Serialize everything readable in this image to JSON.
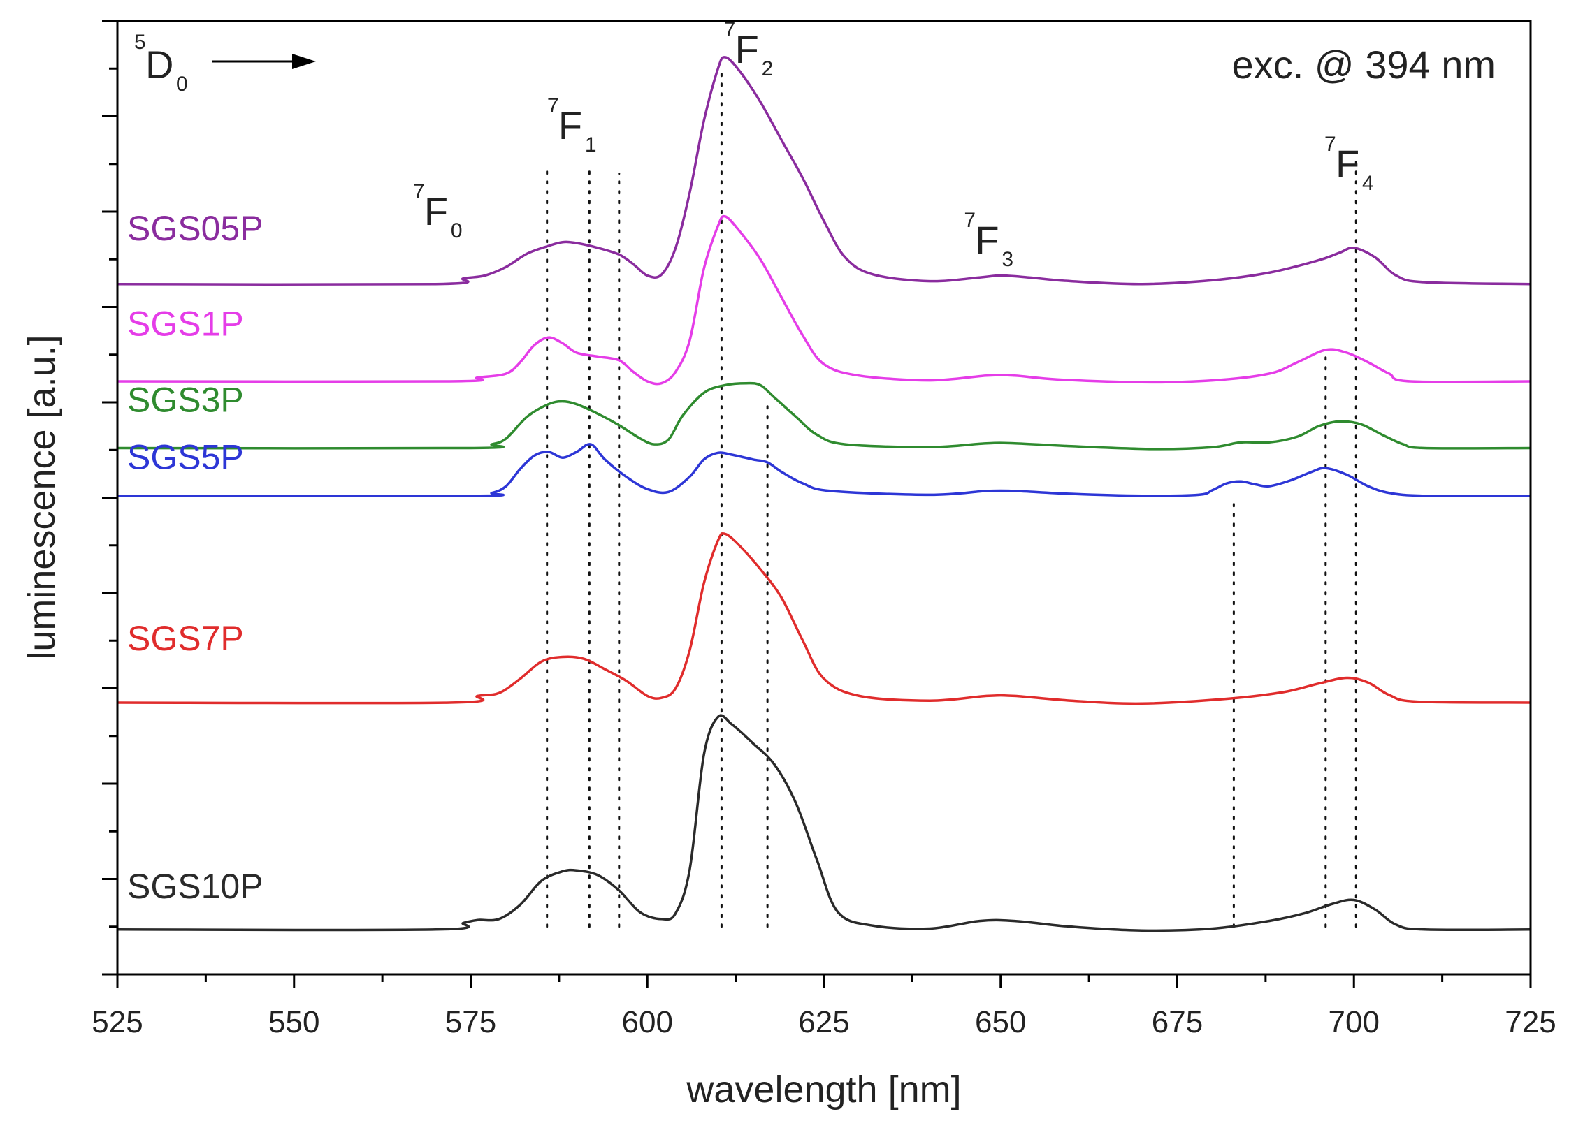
{
  "chart_data": {
    "type": "line",
    "title": "",
    "xlabel": "wavelength [nm]",
    "ylabel": "luminescence [a.u.]",
    "xlim": [
      525,
      725
    ],
    "ylim": [
      0,
      1
    ],
    "xticks": [
      525,
      550,
      575,
      600,
      625,
      650,
      675,
      700,
      725
    ],
    "xtick_labels": [
      "525",
      "550",
      "575",
      "600",
      "625",
      "650",
      "675",
      "700",
      "725"
    ],
    "yticks_count": 11,
    "y_tick_labels_shown": false,
    "excitation_label": "exc. @ 394 nm",
    "transition_label": {
      "upper": "D",
      "upper_sup": "5",
      "upper_sub": "0"
    },
    "level_labels": [
      {
        "base": "F",
        "sup": "7",
        "sub": "0",
        "x": 569
      },
      {
        "base": "F",
        "sup": "7",
        "sub": "1",
        "x": 588
      },
      {
        "base": "F",
        "sup": "7",
        "sub": "2",
        "x": 613
      },
      {
        "base": "F",
        "sup": "7",
        "sub": "3",
        "x": 647
      },
      {
        "base": "F",
        "sup": "7",
        "sub": "4",
        "x": 698
      }
    ],
    "reference_lines": [
      {
        "x": 585.8,
        "y_range": [
          0.05,
          0.85
        ]
      },
      {
        "x": 591.8,
        "y_range": [
          0.05,
          0.85
        ]
      },
      {
        "x": 596.0,
        "y_range": [
          0.05,
          0.84
        ]
      },
      {
        "x": 610.5,
        "y_range": [
          0.05,
          0.95
        ]
      },
      {
        "x": 617.0,
        "y_range": [
          0.05,
          0.6
        ]
      },
      {
        "x": 683.0,
        "y_range": [
          0.05,
          0.5
        ]
      },
      {
        "x": 696.0,
        "y_range": [
          0.05,
          0.65
        ]
      },
      {
        "x": 700.3,
        "y_range": [
          0.05,
          0.86
        ]
      }
    ],
    "series": [
      {
        "name": "SGS05P",
        "color": "#8a2c9e",
        "label_y": 0.77,
        "points": [
          [
            525,
            0.724
          ],
          [
            570,
            0.724
          ],
          [
            574,
            0.73
          ],
          [
            577,
            0.733
          ],
          [
            580,
            0.742
          ],
          [
            583,
            0.756
          ],
          [
            586,
            0.764
          ],
          [
            588,
            0.768
          ],
          [
            590,
            0.767
          ],
          [
            593,
            0.762
          ],
          [
            596,
            0.755
          ],
          [
            598,
            0.745
          ],
          [
            600,
            0.733
          ],
          [
            602,
            0.734
          ],
          [
            604,
            0.762
          ],
          [
            606,
            0.82
          ],
          [
            608,
            0.895
          ],
          [
            610,
            0.95
          ],
          [
            611,
            0.962
          ],
          [
            613,
            0.948
          ],
          [
            616,
            0.915
          ],
          [
            619,
            0.875
          ],
          [
            622,
            0.835
          ],
          [
            625,
            0.79
          ],
          [
            628,
            0.752
          ],
          [
            632,
            0.734
          ],
          [
            640,
            0.727
          ],
          [
            647,
            0.731
          ],
          [
            650,
            0.733
          ],
          [
            654,
            0.731
          ],
          [
            660,
            0.727
          ],
          [
            670,
            0.724
          ],
          [
            680,
            0.728
          ],
          [
            688,
            0.736
          ],
          [
            695,
            0.749
          ],
          [
            698,
            0.757
          ],
          [
            700,
            0.762
          ],
          [
            703,
            0.752
          ],
          [
            706,
            0.733
          ],
          [
            710,
            0.726
          ],
          [
            725,
            0.724
          ]
        ]
      },
      {
        "name": "SGS1P",
        "color": "#e53de8",
        "label_y": 0.67,
        "points": [
          [
            525,
            0.622
          ],
          [
            572,
            0.622
          ],
          [
            576,
            0.626
          ],
          [
            580,
            0.63
          ],
          [
            582,
            0.642
          ],
          [
            584,
            0.66
          ],
          [
            586,
            0.668
          ],
          [
            588,
            0.662
          ],
          [
            590,
            0.652
          ],
          [
            593,
            0.648
          ],
          [
            596,
            0.644
          ],
          [
            598,
            0.632
          ],
          [
            600,
            0.622
          ],
          [
            602,
            0.62
          ],
          [
            604,
            0.632
          ],
          [
            606,
            0.665
          ],
          [
            608,
            0.74
          ],
          [
            610,
            0.785
          ],
          [
            611,
            0.795
          ],
          [
            613,
            0.78
          ],
          [
            616,
            0.75
          ],
          [
            619,
            0.71
          ],
          [
            622,
            0.67
          ],
          [
            625,
            0.64
          ],
          [
            630,
            0.628
          ],
          [
            640,
            0.623
          ],
          [
            648,
            0.628
          ],
          [
            652,
            0.628
          ],
          [
            658,
            0.624
          ],
          [
            670,
            0.621
          ],
          [
            680,
            0.623
          ],
          [
            688,
            0.63
          ],
          [
            692,
            0.642
          ],
          [
            696,
            0.655
          ],
          [
            699,
            0.652
          ],
          [
            702,
            0.642
          ],
          [
            705,
            0.63
          ],
          [
            708,
            0.622
          ],
          [
            725,
            0.622
          ]
        ]
      },
      {
        "name": "SGS3P",
        "color": "#2f8b2f",
        "label_y": 0.59,
        "points": [
          [
            525,
            0.552
          ],
          [
            575,
            0.552
          ],
          [
            578,
            0.556
          ],
          [
            580,
            0.562
          ],
          [
            583,
            0.585
          ],
          [
            586,
            0.598
          ],
          [
            588,
            0.601
          ],
          [
            590,
            0.598
          ],
          [
            593,
            0.588
          ],
          [
            596,
            0.576
          ],
          [
            599,
            0.562
          ],
          [
            601,
            0.556
          ],
          [
            603,
            0.561
          ],
          [
            605,
            0.586
          ],
          [
            608,
            0.61
          ],
          [
            611,
            0.618
          ],
          [
            614,
            0.62
          ],
          [
            616,
            0.618
          ],
          [
            618,
            0.605
          ],
          [
            621,
            0.585
          ],
          [
            624,
            0.566
          ],
          [
            628,
            0.556
          ],
          [
            640,
            0.553
          ],
          [
            648,
            0.557
          ],
          [
            652,
            0.557
          ],
          [
            660,
            0.554
          ],
          [
            672,
            0.551
          ],
          [
            680,
            0.553
          ],
          [
            684,
            0.558
          ],
          [
            688,
            0.558
          ],
          [
            692,
            0.564
          ],
          [
            695,
            0.575
          ],
          [
            698,
            0.58
          ],
          [
            701,
            0.577
          ],
          [
            704,
            0.566
          ],
          [
            707,
            0.556
          ],
          [
            710,
            0.552
          ],
          [
            725,
            0.552
          ]
        ]
      },
      {
        "name": "SGS5P",
        "color": "#2d36d6",
        "label_y": 0.53,
        "points": [
          [
            525,
            0.502
          ],
          [
            575,
            0.502
          ],
          [
            578,
            0.505
          ],
          [
            580,
            0.512
          ],
          [
            582,
            0.53
          ],
          [
            584,
            0.544
          ],
          [
            586,
            0.548
          ],
          [
            588,
            0.542
          ],
          [
            590,
            0.548
          ],
          [
            592,
            0.556
          ],
          [
            594,
            0.54
          ],
          [
            597,
            0.522
          ],
          [
            600,
            0.509
          ],
          [
            603,
            0.506
          ],
          [
            606,
            0.522
          ],
          [
            608,
            0.54
          ],
          [
            610,
            0.547
          ],
          [
            612,
            0.545
          ],
          [
            615,
            0.54
          ],
          [
            617,
            0.537
          ],
          [
            619,
            0.527
          ],
          [
            622,
            0.515
          ],
          [
            626,
            0.507
          ],
          [
            640,
            0.503
          ],
          [
            648,
            0.507
          ],
          [
            652,
            0.507
          ],
          [
            660,
            0.504
          ],
          [
            670,
            0.502
          ],
          [
            678,
            0.503
          ],
          [
            680,
            0.508
          ],
          [
            682,
            0.515
          ],
          [
            684,
            0.517
          ],
          [
            686,
            0.514
          ],
          [
            688,
            0.512
          ],
          [
            691,
            0.518
          ],
          [
            694,
            0.527
          ],
          [
            696,
            0.531
          ],
          [
            699,
            0.524
          ],
          [
            702,
            0.512
          ],
          [
            705,
            0.505
          ],
          [
            710,
            0.502
          ],
          [
            725,
            0.502
          ]
        ]
      },
      {
        "name": "SGS7P",
        "color": "#e02c2c",
        "label_y": 0.34,
        "points": [
          [
            525,
            0.285
          ],
          [
            572,
            0.285
          ],
          [
            576,
            0.292
          ],
          [
            579,
            0.295
          ],
          [
            582,
            0.31
          ],
          [
            585,
            0.328
          ],
          [
            588,
            0.333
          ],
          [
            591,
            0.331
          ],
          [
            594,
            0.32
          ],
          [
            597,
            0.308
          ],
          [
            600,
            0.292
          ],
          [
            602,
            0.29
          ],
          [
            604,
            0.3
          ],
          [
            606,
            0.34
          ],
          [
            608,
            0.41
          ],
          [
            610,
            0.455
          ],
          [
            611,
            0.462
          ],
          [
            613,
            0.45
          ],
          [
            616,
            0.425
          ],
          [
            619,
            0.395
          ],
          [
            622,
            0.35
          ],
          [
            625,
            0.31
          ],
          [
            630,
            0.292
          ],
          [
            640,
            0.287
          ],
          [
            648,
            0.292
          ],
          [
            652,
            0.292
          ],
          [
            660,
            0.287
          ],
          [
            670,
            0.284
          ],
          [
            682,
            0.289
          ],
          [
            690,
            0.296
          ],
          [
            695,
            0.305
          ],
          [
            699,
            0.311
          ],
          [
            702,
            0.306
          ],
          [
            705,
            0.293
          ],
          [
            709,
            0.286
          ],
          [
            725,
            0.285
          ]
        ]
      },
      {
        "name": "SGS10P",
        "color": "#2a2a2a",
        "label_y": 0.08,
        "points": [
          [
            525,
            0.047
          ],
          [
            570,
            0.047
          ],
          [
            574,
            0.054
          ],
          [
            576,
            0.057
          ],
          [
            579,
            0.058
          ],
          [
            582,
            0.073
          ],
          [
            585,
            0.098
          ],
          [
            588,
            0.108
          ],
          [
            590,
            0.109
          ],
          [
            593,
            0.104
          ],
          [
            596,
            0.088
          ],
          [
            599,
            0.065
          ],
          [
            602,
            0.058
          ],
          [
            604,
            0.064
          ],
          [
            606,
            0.11
          ],
          [
            608,
            0.23
          ],
          [
            610,
            0.27
          ],
          [
            612,
            0.262
          ],
          [
            615,
            0.242
          ],
          [
            618,
            0.22
          ],
          [
            621,
            0.18
          ],
          [
            624,
            0.12
          ],
          [
            627,
            0.065
          ],
          [
            632,
            0.051
          ],
          [
            640,
            0.048
          ],
          [
            647,
            0.056
          ],
          [
            652,
            0.056
          ],
          [
            660,
            0.05
          ],
          [
            670,
            0.046
          ],
          [
            680,
            0.048
          ],
          [
            688,
            0.056
          ],
          [
            693,
            0.064
          ],
          [
            697,
            0.074
          ],
          [
            700,
            0.078
          ],
          [
            703,
            0.068
          ],
          [
            706,
            0.052
          ],
          [
            710,
            0.047
          ],
          [
            725,
            0.047
          ]
        ]
      }
    ]
  }
}
